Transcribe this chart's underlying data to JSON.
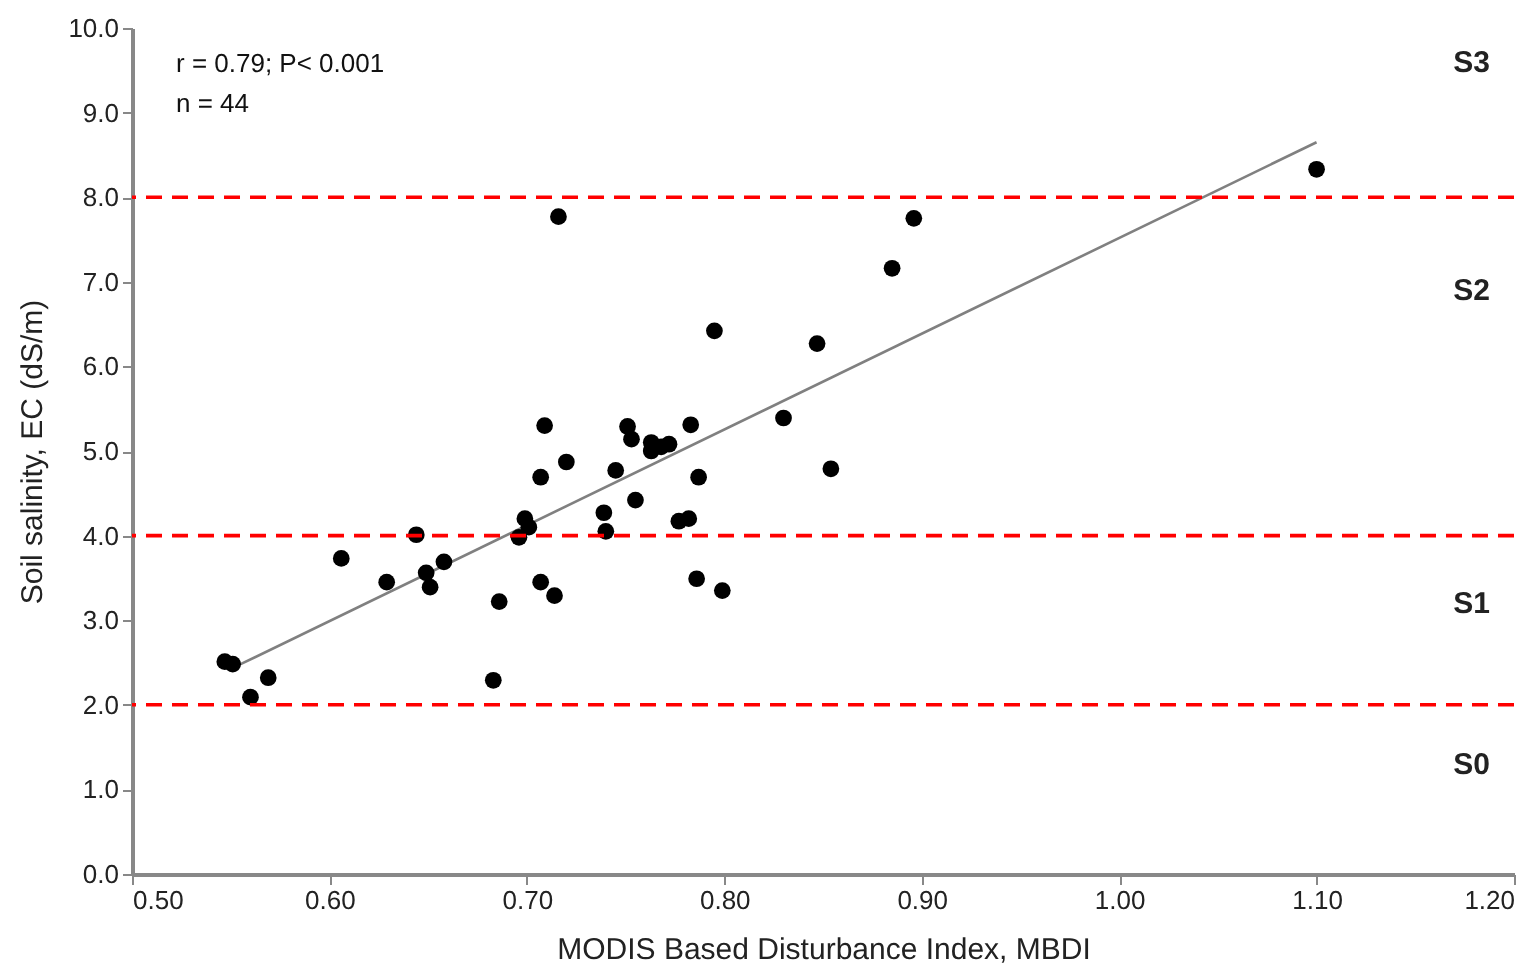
{
  "chart_data": {
    "type": "scatter",
    "xlabel": "MODIS Based Disturbance Index, MBDI",
    "ylabel": "Soil salinity, EC (dS/m)",
    "xlim": [
      0.5,
      1.2
    ],
    "xticks": [
      {
        "value": 0.5,
        "label": "0.50"
      },
      {
        "value": 0.6,
        "label": "0.60"
      },
      {
        "value": 0.7,
        "label": "0.70"
      },
      {
        "value": 0.8,
        "label": "0.80"
      },
      {
        "value": 0.9,
        "label": "0.90"
      },
      {
        "value": 1.0,
        "label": "1.00"
      },
      {
        "value": 1.1,
        "label": "1.10"
      },
      {
        "value": 1.2,
        "label": "1.20"
      }
    ],
    "ylim": [
      0,
      10
    ],
    "yticks": [
      {
        "value": 0,
        "label": "0.0"
      },
      {
        "value": 1,
        "label": "1.0"
      },
      {
        "value": 2,
        "label": "2.0"
      },
      {
        "value": 3,
        "label": "3.0"
      },
      {
        "value": 4,
        "label": "4.0"
      },
      {
        "value": 5,
        "label": "5.0"
      },
      {
        "value": 6,
        "label": "6.0"
      },
      {
        "value": 7,
        "label": "7.0"
      },
      {
        "value": 8,
        "label": "8.0"
      },
      {
        "value": 9,
        "label": "9.0"
      },
      {
        "value": 10,
        "label": "10.0"
      }
    ],
    "grid": false,
    "marker": "circle",
    "series": [
      {
        "color": "#000000",
        "x": [
          0.547,
          0.551,
          0.56,
          0.569,
          0.606,
          0.629,
          0.644,
          0.649,
          0.651,
          0.658,
          0.683,
          0.686,
          0.696,
          0.699,
          0.701,
          0.707,
          0.707,
          0.709,
          0.714,
          0.716,
          0.72,
          0.739,
          0.74,
          0.745,
          0.751,
          0.753,
          0.755,
          0.763,
          0.763,
          0.768,
          0.772,
          0.777,
          0.783,
          0.782,
          0.786,
          0.787,
          0.799,
          0.795,
          0.83,
          0.847,
          0.854,
          0.885,
          0.896,
          1.1
        ],
        "values": [
          2.51,
          2.48,
          2.09,
          2.32,
          3.73,
          3.45,
          4.01,
          3.56,
          3.39,
          3.69,
          2.29,
          3.22,
          3.98,
          4.2,
          4.1,
          4.69,
          3.45,
          5.3,
          3.29,
          7.77,
          4.87,
          4.27,
          4.05,
          4.77,
          5.29,
          5.14,
          4.42,
          5.1,
          5.0,
          5.05,
          5.08,
          4.17,
          5.31,
          4.2,
          3.49,
          4.69,
          3.35,
          6.42,
          5.39,
          6.27,
          4.79,
          7.16,
          7.75,
          8.33
        ]
      },
      {
        "type": "line",
        "color": "#808080",
        "marker": "none",
        "x": [
          0.555,
          1.1
        ],
        "values": [
          2.48,
          8.65
        ]
      }
    ],
    "ref_lines": [
      {
        "axis": "y",
        "value": 2,
        "color": "#ff0000",
        "line_style": "dashed"
      },
      {
        "axis": "y",
        "value": 4,
        "color": "#ff0000",
        "line_style": "dashed"
      },
      {
        "axis": "y",
        "value": 8,
        "color": "#ff0000",
        "line_style": "dashed"
      }
    ],
    "annotations": [
      "r = 0.79; P< 0.001",
      "n = 44",
      "S3",
      "S2",
      "S1",
      "S0"
    ]
  }
}
